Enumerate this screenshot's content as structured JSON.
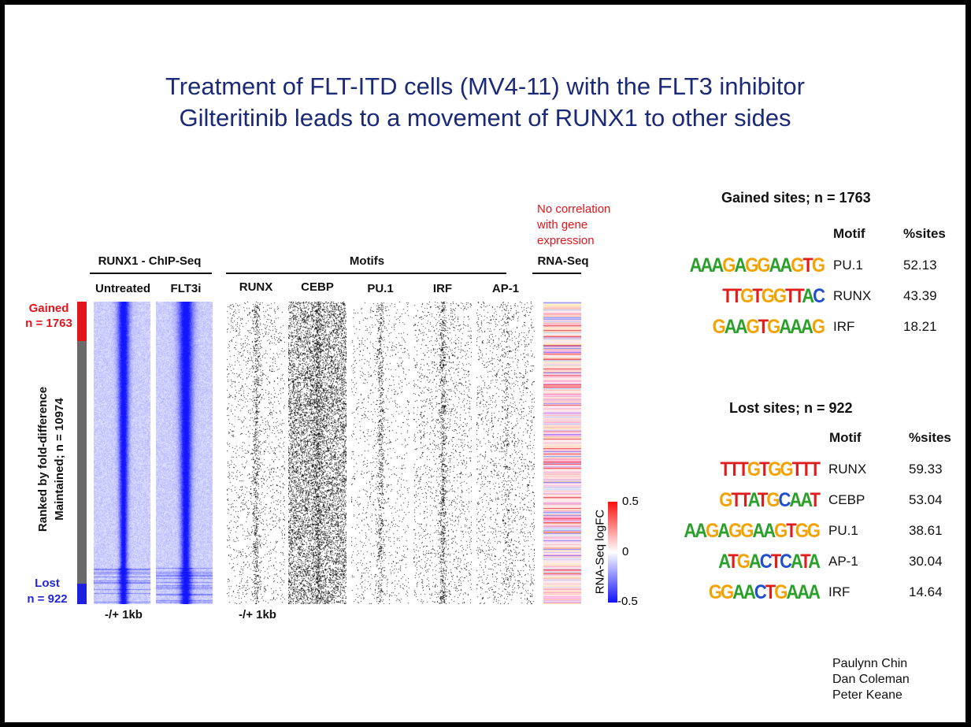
{
  "title": {
    "line1": "Treatment of FLT-ITD cells (MV4-11)  with the FLT3 inhibitor",
    "line2": "Gilteritinib leads to a movement of RUNX1 to other sides"
  },
  "heatmap": {
    "chipseq_header": "RUNX1 - ChIP-Seq",
    "motifs_header": "Motifs",
    "rnaseq_header": "RNA-Seq",
    "correlation_note": [
      "No correlation",
      "with gene",
      "expression"
    ],
    "columns": [
      "Untreated",
      "FLT3i",
      "RUNX",
      "CEBP",
      "PU.1",
      "IRF",
      "AP-1"
    ],
    "range_label_chip": "-/+ 1kb",
    "range_label_motif": "-/+ 1kb",
    "gained_label": [
      "Gained",
      "n = 1763"
    ],
    "maintained_label": [
      "Ranked by fold-difference",
      "Maintained; n = 10974"
    ],
    "lost_label": [
      "Lost",
      "n = 922"
    ],
    "colorbar": {
      "title": "RNA-Seq logFC",
      "max": "0.5",
      "mid": "0",
      "min": "-0.5"
    },
    "colors": {
      "gained": "#e4141b",
      "maintained": "#6b6b6b",
      "lost": "#1f1fe0",
      "signal": "#1a1aff"
    }
  },
  "gained": {
    "header": "Gained sites; n = 1763",
    "col_motif": "Motif",
    "col_sites": "%sites",
    "rows": [
      {
        "logo": "AAAGAGGAAGTG",
        "motif": "PU.1",
        "sites": "52.13"
      },
      {
        "logo": "TTGTGGTTAC",
        "motif": "RUNX",
        "sites": "43.39"
      },
      {
        "logo": "GAAGTGAAAG",
        "motif": "IRF",
        "sites": "18.21"
      }
    ]
  },
  "lost": {
    "header": "Lost sites; n = 922",
    "col_motif": "Motif",
    "col_sites": "%sites",
    "rows": [
      {
        "logo": "TTTGTGGTTT",
        "motif": "RUNX",
        "sites": "59.33"
      },
      {
        "logo": "GTTATGCAAT",
        "motif": "CEBP",
        "sites": "53.04"
      },
      {
        "logo": "AAGAGGAAGTGG",
        "motif": "PU.1",
        "sites": "38.61"
      },
      {
        "logo": "ATGACTCATA",
        "motif": "AP-1",
        "sites": "30.04"
      },
      {
        "logo": "GGAACTGAAA",
        "motif": "IRF",
        "sites": "14.64"
      }
    ]
  },
  "authors": [
    "Paulynn Chin",
    "Dan Coleman",
    "Peter Keane"
  ]
}
